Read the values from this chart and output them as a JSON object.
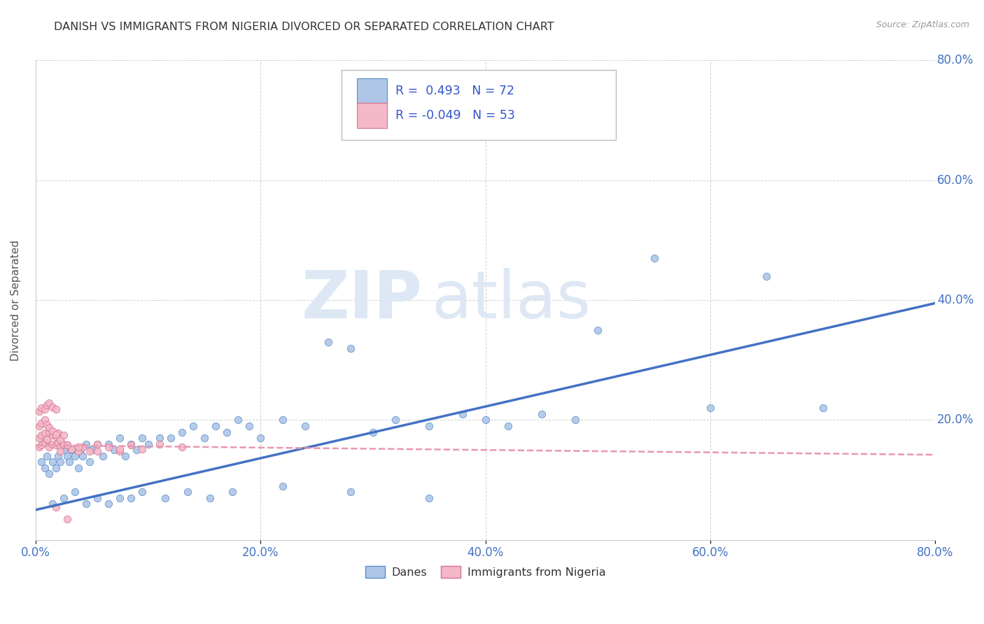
{
  "title": "DANISH VS IMMIGRANTS FROM NIGERIA DIVORCED OR SEPARATED CORRELATION CHART",
  "source": "Source: ZipAtlas.com",
  "ylabel": "Divorced or Separated",
  "xlim": [
    0.0,
    0.8
  ],
  "ylim": [
    0.0,
    0.8
  ],
  "xtick_vals": [
    0.0,
    0.2,
    0.4,
    0.6,
    0.8
  ],
  "ytick_vals": [
    0.2,
    0.4,
    0.6,
    0.8
  ],
  "danes_color": "#aec6e8",
  "danes_edge_color": "#5b8ec4",
  "nigeria_color": "#f4b8c8",
  "nigeria_edge_color": "#d47090",
  "danes_R": 0.493,
  "danes_N": 72,
  "nigeria_R": -0.049,
  "nigeria_N": 53,
  "danes_line_color": "#4472c4",
  "nigeria_line_color": "#e898b0",
  "legend_label_danes": "Danes",
  "legend_label_nigeria": "Immigrants from Nigeria",
  "danes_line_x0": 0.0,
  "danes_line_y0": 0.05,
  "danes_line_x1": 0.8,
  "danes_line_y1": 0.395,
  "nigeria_line_x0": 0.0,
  "nigeria_line_y0": 0.158,
  "nigeria_line_x1": 0.8,
  "nigeria_line_y1": 0.142,
  "watermark_part1": "ZIP",
  "watermark_part2": "atlas",
  "danes_x": [
    0.005,
    0.008,
    0.01,
    0.012,
    0.015,
    0.018,
    0.02,
    0.022,
    0.025,
    0.028,
    0.03,
    0.032,
    0.035,
    0.038,
    0.04,
    0.042,
    0.045,
    0.048,
    0.05,
    0.055,
    0.06,
    0.065,
    0.07,
    0.075,
    0.08,
    0.085,
    0.09,
    0.095,
    0.1,
    0.11,
    0.12,
    0.13,
    0.14,
    0.15,
    0.16,
    0.17,
    0.18,
    0.19,
    0.2,
    0.22,
    0.24,
    0.26,
    0.28,
    0.3,
    0.32,
    0.35,
    0.38,
    0.4,
    0.42,
    0.45,
    0.48,
    0.5,
    0.55,
    0.6,
    0.65,
    0.7,
    0.015,
    0.025,
    0.035,
    0.045,
    0.055,
    0.065,
    0.075,
    0.085,
    0.095,
    0.115,
    0.135,
    0.155,
    0.175,
    0.22,
    0.28,
    0.35
  ],
  "danes_y": [
    0.13,
    0.12,
    0.14,
    0.11,
    0.13,
    0.12,
    0.14,
    0.13,
    0.15,
    0.14,
    0.13,
    0.15,
    0.14,
    0.12,
    0.15,
    0.14,
    0.16,
    0.13,
    0.15,
    0.16,
    0.14,
    0.16,
    0.15,
    0.17,
    0.14,
    0.16,
    0.15,
    0.17,
    0.16,
    0.17,
    0.17,
    0.18,
    0.19,
    0.17,
    0.19,
    0.18,
    0.2,
    0.19,
    0.17,
    0.2,
    0.19,
    0.33,
    0.32,
    0.18,
    0.2,
    0.19,
    0.21,
    0.2,
    0.19,
    0.21,
    0.2,
    0.35,
    0.47,
    0.22,
    0.44,
    0.22,
    0.06,
    0.07,
    0.08,
    0.06,
    0.07,
    0.06,
    0.07,
    0.07,
    0.08,
    0.07,
    0.08,
    0.07,
    0.08,
    0.09,
    0.08,
    0.07
  ],
  "nigeria_x": [
    0.003,
    0.005,
    0.008,
    0.01,
    0.012,
    0.015,
    0.018,
    0.02,
    0.022,
    0.025,
    0.003,
    0.005,
    0.008,
    0.01,
    0.012,
    0.015,
    0.018,
    0.02,
    0.022,
    0.025,
    0.003,
    0.005,
    0.008,
    0.01,
    0.012,
    0.015,
    0.018,
    0.028,
    0.032,
    0.038,
    0.042,
    0.048,
    0.055,
    0.065,
    0.075,
    0.085,
    0.095,
    0.11,
    0.13,
    0.003,
    0.005,
    0.008,
    0.01,
    0.012,
    0.015,
    0.018,
    0.022,
    0.028,
    0.038,
    0.055,
    0.075,
    0.018,
    0.028
  ],
  "nigeria_y": [
    0.155,
    0.158,
    0.162,
    0.168,
    0.155,
    0.16,
    0.158,
    0.162,
    0.155,
    0.16,
    0.17,
    0.175,
    0.178,
    0.168,
    0.18,
    0.175,
    0.172,
    0.178,
    0.168,
    0.175,
    0.19,
    0.195,
    0.2,
    0.192,
    0.188,
    0.182,
    0.176,
    0.158,
    0.152,
    0.148,
    0.155,
    0.148,
    0.16,
    0.155,
    0.148,
    0.158,
    0.152,
    0.16,
    0.155,
    0.215,
    0.22,
    0.218,
    0.225,
    0.228,
    0.222,
    0.218,
    0.148,
    0.158,
    0.155,
    0.148,
    0.152,
    0.055,
    0.035
  ]
}
